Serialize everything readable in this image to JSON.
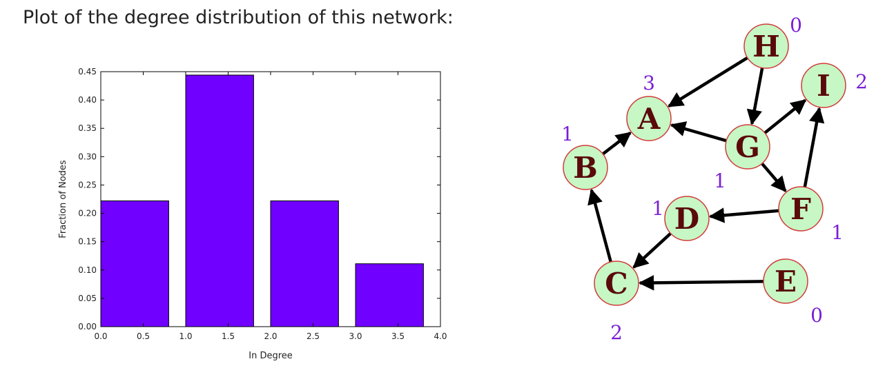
{
  "heading": "Plot of the degree distribution of this network:",
  "chart_data": {
    "type": "bar",
    "x": [
      0,
      1,
      2,
      3
    ],
    "bar_width": 0.8,
    "values": [
      0.222,
      0.444,
      0.222,
      0.111
    ],
    "bar_color": "#7000ff",
    "xlabel": "In Degree",
    "ylabel": "Fraction of Nodes",
    "xlim": [
      0.0,
      4.0
    ],
    "ylim": [
      0.0,
      0.45
    ],
    "xticks": [
      "0.0",
      "0.5",
      "1.0",
      "1.5",
      "2.0",
      "2.5",
      "3.0",
      "3.5",
      "4.0"
    ],
    "yticks": [
      "0.00",
      "0.05",
      "0.10",
      "0.15",
      "0.20",
      "0.25",
      "0.30",
      "0.35",
      "0.40",
      "0.45"
    ],
    "grid": false
  },
  "graph": {
    "node_fill": "#c6f7c4",
    "node_stroke": "#d23a3a",
    "edge_color": "#000000",
    "degree_label_color": "#7a1fd6",
    "nodes": [
      {
        "id": "H",
        "label": "H",
        "in_degree": "0"
      },
      {
        "id": "A",
        "label": "A",
        "in_degree": "3"
      },
      {
        "id": "I",
        "label": "I",
        "in_degree": "2"
      },
      {
        "id": "G",
        "label": "G",
        "in_degree": "1"
      },
      {
        "id": "B",
        "label": "B",
        "in_degree": "1"
      },
      {
        "id": "F",
        "label": "F",
        "in_degree": "1"
      },
      {
        "id": "D",
        "label": "D",
        "in_degree": "1"
      },
      {
        "id": "C",
        "label": "C",
        "in_degree": "2"
      },
      {
        "id": "E",
        "label": "E",
        "in_degree": "0"
      }
    ],
    "edges": [
      {
        "from": "H",
        "to": "A"
      },
      {
        "from": "H",
        "to": "G"
      },
      {
        "from": "G",
        "to": "A"
      },
      {
        "from": "G",
        "to": "I"
      },
      {
        "from": "G",
        "to": "F"
      },
      {
        "from": "F",
        "to": "I"
      },
      {
        "from": "F",
        "to": "D"
      },
      {
        "from": "B",
        "to": "A"
      },
      {
        "from": "D",
        "to": "C"
      },
      {
        "from": "C",
        "to": "B"
      },
      {
        "from": "E",
        "to": "C"
      }
    ]
  }
}
